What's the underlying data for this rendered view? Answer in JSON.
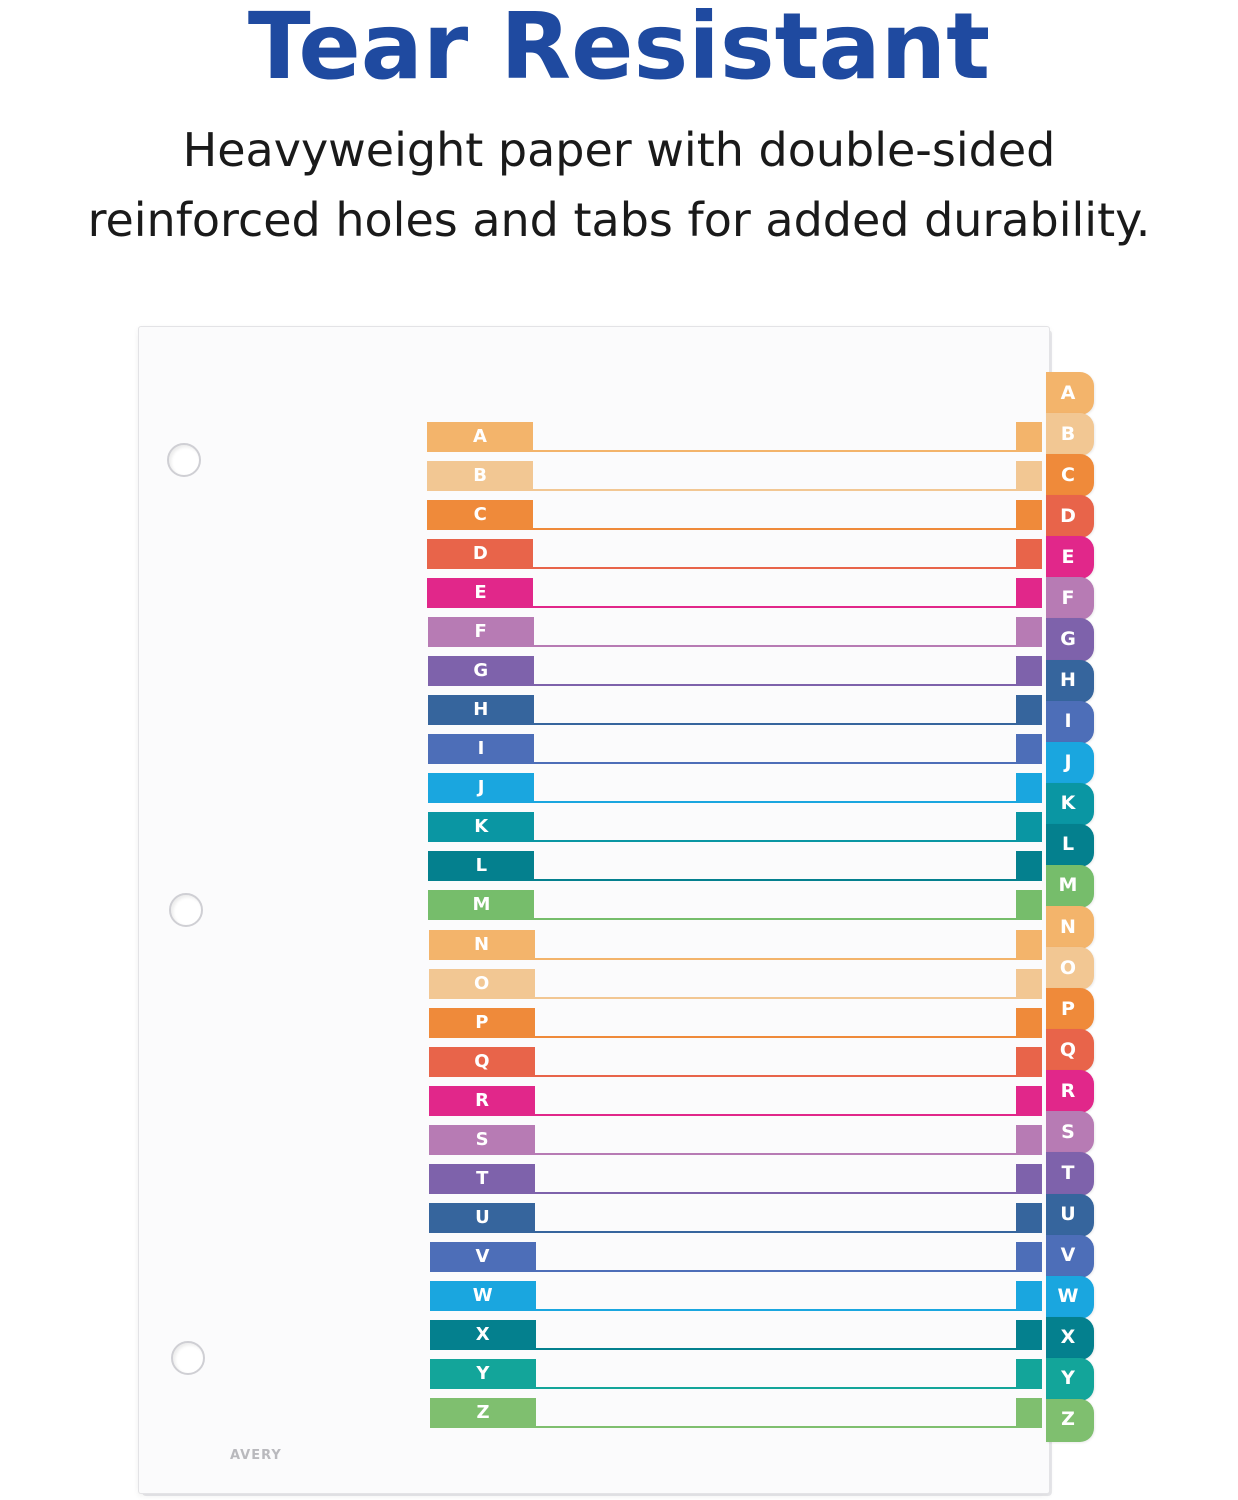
{
  "header": {
    "title": "Tear Resistant",
    "description_line1": "Heavyweight paper with double-sided",
    "description_line2": "reinforced holes and tabs for added durability."
  },
  "divider": {
    "brand_logo_text": "AVERY",
    "tabs": [
      {
        "label": "A",
        "color": "#f3b46b"
      },
      {
        "label": "B",
        "color": "#f2c793"
      },
      {
        "label": "C",
        "color": "#ef8a3a"
      },
      {
        "label": "D",
        "color": "#e8644a"
      },
      {
        "label": "E",
        "color": "#e1278a"
      },
      {
        "label": "F",
        "color": "#b77bb4"
      },
      {
        "label": "G",
        "color": "#7e62ab"
      },
      {
        "label": "H",
        "color": "#36659d"
      },
      {
        "label": "I",
        "color": "#4d6eb8"
      },
      {
        "label": "J",
        "color": "#1aa6df"
      },
      {
        "label": "K",
        "color": "#0a96a3"
      },
      {
        "label": "L",
        "color": "#04808e"
      },
      {
        "label": "M",
        "color": "#76bd6b"
      },
      {
        "label": "N",
        "color": "#f3b46b"
      },
      {
        "label": "O",
        "color": "#f2c793"
      },
      {
        "label": "P",
        "color": "#ef8a3a"
      },
      {
        "label": "Q",
        "color": "#e8644a"
      },
      {
        "label": "R",
        "color": "#e1278a"
      },
      {
        "label": "S",
        "color": "#b77bb4"
      },
      {
        "label": "T",
        "color": "#7e62ab"
      },
      {
        "label": "U",
        "color": "#36659d"
      },
      {
        "label": "V",
        "color": "#4d6eb8"
      },
      {
        "label": "W",
        "color": "#1aa6df"
      },
      {
        "label": "X",
        "color": "#04808e"
      },
      {
        "label": "Y",
        "color": "#13a59a"
      },
      {
        "label": "Z",
        "color": "#7fbf6f"
      }
    ]
  }
}
